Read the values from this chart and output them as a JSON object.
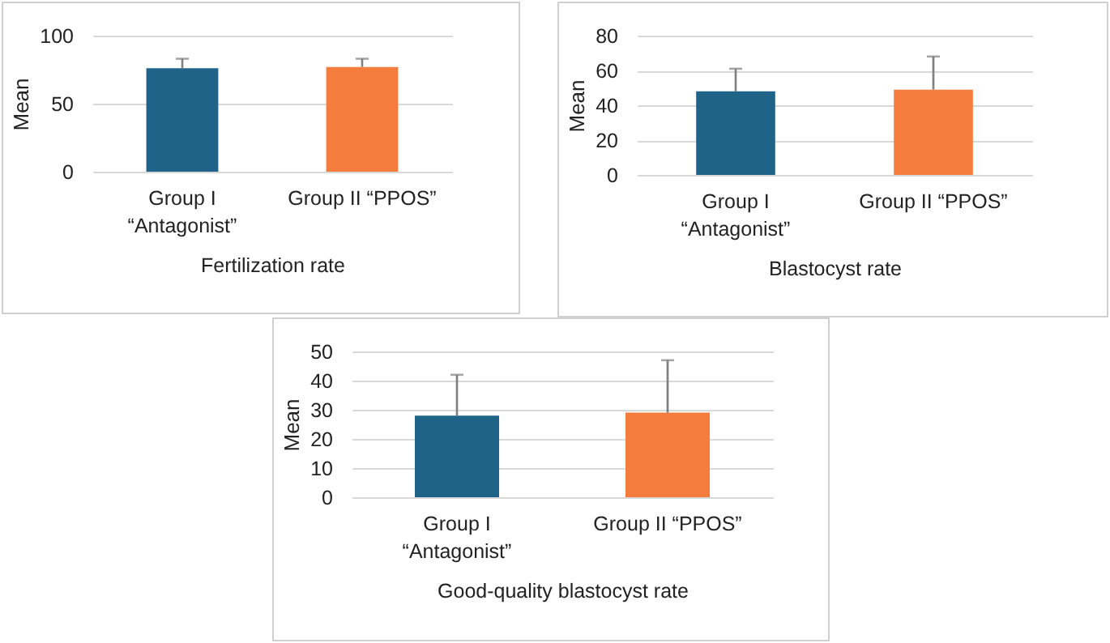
{
  "chart_data": [
    {
      "type": "bar",
      "xlabel": "Fertilization rate",
      "ylabel": "Mean",
      "categories": [
        "Group I “Antagonist”",
        "Group II “PPOS”"
      ],
      "colors": [
        "#1f6388",
        "#f47c3c"
      ],
      "values": [
        76,
        77
      ],
      "errors": [
        [
          76,
          83
        ],
        [
          77,
          83
        ]
      ],
      "ylim": [
        0,
        100
      ],
      "yticks": [
        0,
        50,
        100
      ],
      "grid": "y"
    },
    {
      "type": "bar",
      "xlabel": "Blastocyst rate",
      "ylabel": "Mean",
      "categories": [
        "Group I “Antagonist”",
        "Group II “PPOS”"
      ],
      "colors": [
        "#1f6388",
        "#f47c3c"
      ],
      "values": [
        48,
        49
      ],
      "errors": [
        [
          48,
          61
        ],
        [
          49,
          68
        ]
      ],
      "ylim": [
        0,
        80
      ],
      "yticks": [
        0,
        20,
        40,
        60,
        80
      ],
      "grid": "y"
    },
    {
      "type": "bar",
      "xlabel": "Good-quality blastocyst rate",
      "ylabel": "Mean",
      "categories": [
        "Group I “Antagonist”",
        "Group II “PPOS”"
      ],
      "colors": [
        "#1f6388",
        "#f47c3c"
      ],
      "values": [
        28,
        29
      ],
      "errors": [
        [
          28,
          42
        ],
        [
          29,
          47
        ]
      ],
      "ylim": [
        0,
        50
      ],
      "yticks": [
        0,
        10,
        20,
        30,
        40,
        50
      ],
      "grid": "y"
    }
  ]
}
